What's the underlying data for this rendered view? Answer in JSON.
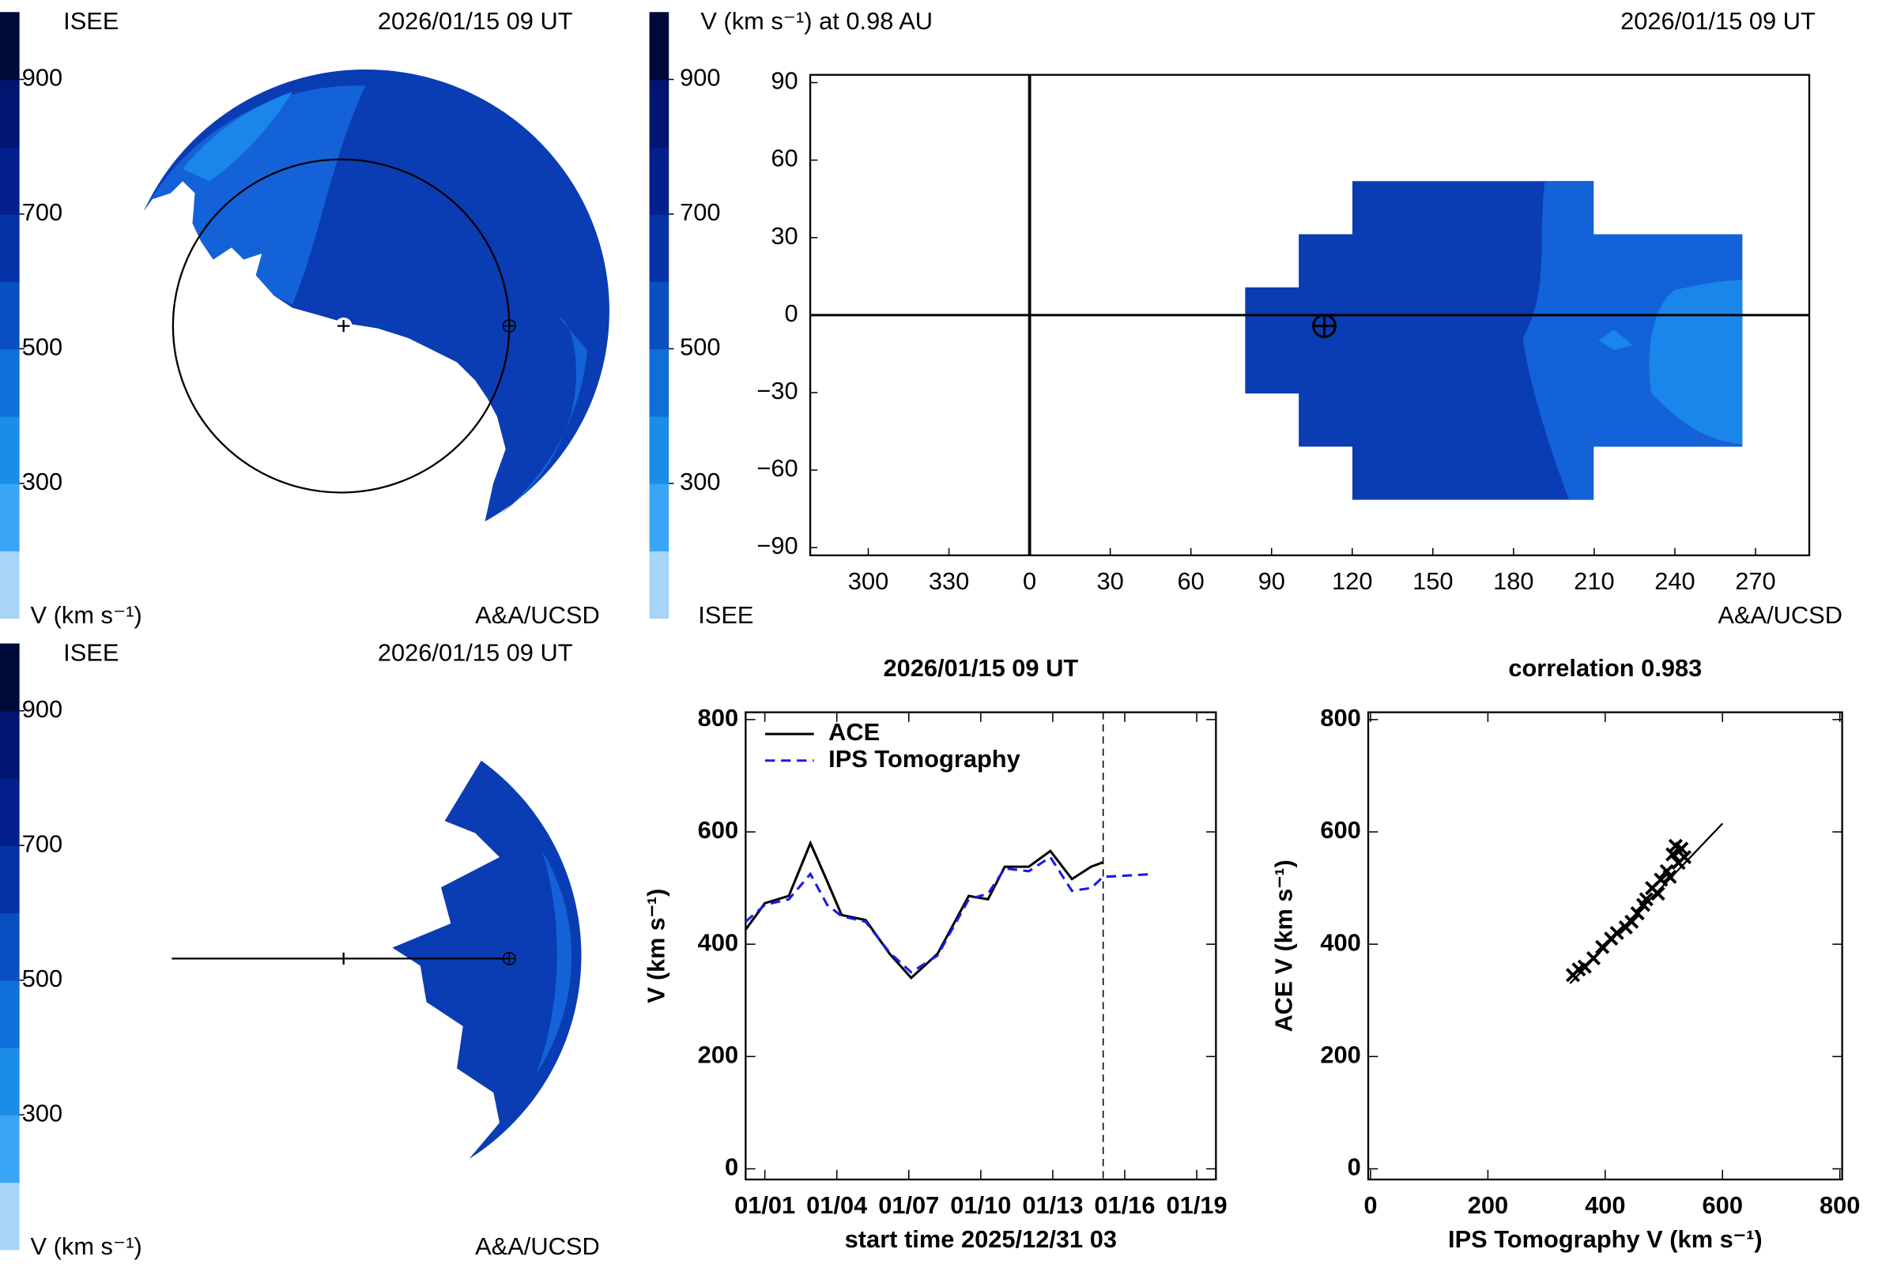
{
  "chart_data": [
    {
      "type": "polar-map",
      "label": "ISEE",
      "date": "2026/01/15 09 UT",
      "credit": "A&A/UCSD",
      "colorbar": {
        "title": "V (km s⁻¹)",
        "vlim": [
          100,
          1000
        ],
        "ticks": [
          300,
          500,
          700,
          900
        ],
        "colors": [
          "#a6d5f7",
          "#3ba5f5",
          "#1a8de8",
          "#0f6fd8",
          "#0a4fc2",
          "#0632a8",
          "#021f8c",
          "#011470",
          "#000a3a"
        ]
      }
    },
    {
      "type": "latlon-map",
      "title": "V (km s⁻¹) at 0.98 AU",
      "date": "2026/01/15 09 UT",
      "label": "ISEE",
      "credit": "A&A/UCSD",
      "colorbar": {
        "vlim": [
          100,
          1000
        ],
        "ticks": [
          300,
          500,
          700,
          900
        ],
        "colors": [
          "#a6d5f7",
          "#3ba5f5",
          "#1a8de8",
          "#0f6fd8",
          "#0a4fc2",
          "#0632a8",
          "#021f8c",
          "#011470",
          "#000a3a"
        ]
      },
      "xlim": [
        -81.6,
        290
      ],
      "ylim": [
        -93,
        93
      ],
      "xticks": [
        {
          "value": -60,
          "label": "300"
        },
        {
          "value": -30,
          "label": "330"
        },
        0,
        30,
        60,
        90,
        120,
        150,
        180,
        210,
        240,
        270
      ],
      "yticks": [
        90,
        60,
        30,
        0,
        {
          "value": -30,
          "label": "−30"
        },
        {
          "value": -60,
          "label": "−60"
        },
        {
          "value": -90,
          "label": "−90"
        }
      ]
    },
    {
      "type": "polar-map",
      "label": "ISEE",
      "date": "2026/01/15 09 UT",
      "credit": "A&A/UCSD",
      "colorbar": {
        "title": "V (km s⁻¹)",
        "vlim": [
          100,
          1000
        ],
        "ticks": [
          300,
          500,
          700,
          900
        ],
        "colors": [
          "#a6d5f7",
          "#3ba5f5",
          "#1a8de8",
          "#0f6fd8",
          "#0a4fc2",
          "#0632a8",
          "#021f8c",
          "#011470",
          "#000a3a"
        ]
      }
    },
    {
      "type": "line",
      "title": "2026/01/15 09 UT",
      "xlabel": "start time 2025/12/31 03",
      "ylabel": "V (km s⁻¹)",
      "xlim": [
        0.2,
        19.8
      ],
      "ylim": [
        -19,
        813
      ],
      "vline": 15.1,
      "xticks": [
        {
          "value": 1,
          "label": "01/01"
        },
        {
          "value": 4,
          "label": "01/04"
        },
        {
          "value": 7,
          "label": "01/07"
        },
        {
          "value": 10,
          "label": "01/10"
        },
        {
          "value": 13,
          "label": "01/13"
        },
        {
          "value": 16,
          "label": "01/16"
        },
        {
          "value": 19,
          "label": "01/19"
        }
      ],
      "yticks": [
        0,
        200,
        400,
        600,
        800
      ],
      "series": [
        {
          "name": "ACE",
          "color": "#000000",
          "dash": false,
          "x": [
            0.2,
            1,
            2,
            2.9,
            3.6,
            4.2,
            5.2,
            6.2,
            7.1,
            8.2,
            9.5,
            10.3,
            11,
            12,
            12.9,
            13.8,
            14.6,
            15.1
          ],
          "values": [
            426,
            473,
            486,
            580,
            512,
            452,
            443,
            383,
            340,
            383,
            486,
            480,
            538,
            538,
            566,
            516,
            538,
            546
          ]
        },
        {
          "name": "IPS Tomography",
          "color": "#1a1ae6",
          "dash": true,
          "x": [
            0.2,
            1,
            2,
            2.9,
            3.6,
            4.2,
            5.2,
            6.2,
            7.1,
            8.2,
            9.5,
            10.3,
            11,
            12,
            12.9,
            13.8,
            14.6,
            15.1,
            16,
            17.2
          ],
          "values": [
            440,
            470,
            480,
            525,
            470,
            450,
            440,
            385,
            350,
            380,
            480,
            490,
            535,
            530,
            555,
            495,
            500,
            520,
            522,
            525
          ]
        }
      ]
    },
    {
      "type": "scatter",
      "title": "correlation 0.983",
      "xlabel": "IPS Tomography V (km s⁻¹)",
      "ylabel": "ACE V (km s⁻¹)",
      "xlim": [
        -4,
        804
      ],
      "ylim": [
        -19,
        813
      ],
      "xticks": [
        0,
        200,
        400,
        600,
        800
      ],
      "yticks": [
        0,
        200,
        400,
        600,
        800
      ],
      "x": [
        345,
        355,
        365,
        380,
        395,
        410,
        420,
        435,
        445,
        455,
        465,
        470,
        480,
        490,
        495,
        505,
        510,
        515,
        520,
        525,
        530,
        535
      ],
      "values": [
        345,
        355,
        360,
        375,
        395,
        410,
        420,
        430,
        440,
        455,
        470,
        480,
        500,
        490,
        515,
        530,
        520,
        560,
        575,
        545,
        570,
        555
      ],
      "fit": {
        "x": [
          340,
          600
        ],
        "y": [
          330,
          615
        ]
      }
    }
  ]
}
